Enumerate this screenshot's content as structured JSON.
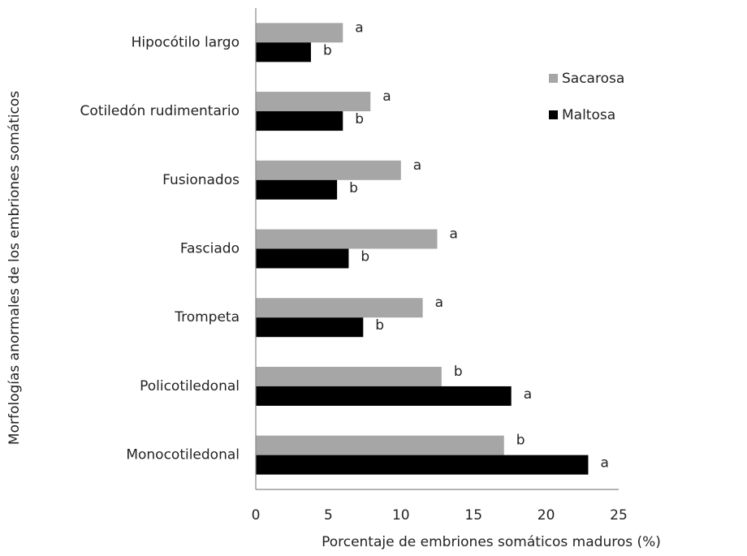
{
  "chart_data": {
    "type": "hbar",
    "xlabel": "Porcentaje de embriones  somáticos maduros  (%)",
    "ylabel": "Morfologías anormales de los embriones somáticos",
    "categories": [
      "Hipocótilo largo",
      "Cotiledón rudimentario",
      "Fusionados",
      "Fasciado",
      "Trompeta",
      "Policotiledonal",
      "Monocotiledonal"
    ],
    "series": [
      {
        "name": "Sacarosa",
        "color": "#a6a6a6",
        "values": [
          6.0,
          7.9,
          10.0,
          12.5,
          11.5,
          12.8,
          17.1
        ],
        "letters": [
          "a",
          "a",
          "a",
          "a",
          "a",
          "b",
          "b"
        ]
      },
      {
        "name": "Maltosa",
        "color": "#000000",
        "values": [
          3.8,
          6.0,
          5.6,
          6.4,
          7.4,
          17.6,
          22.9
        ],
        "letters": [
          "b",
          "b",
          "b",
          "b",
          "b",
          "a",
          "a"
        ]
      }
    ],
    "xlim": [
      0,
      25
    ],
    "xticks": [
      0,
      5,
      10,
      15,
      20,
      25
    ],
    "grid": false
  }
}
